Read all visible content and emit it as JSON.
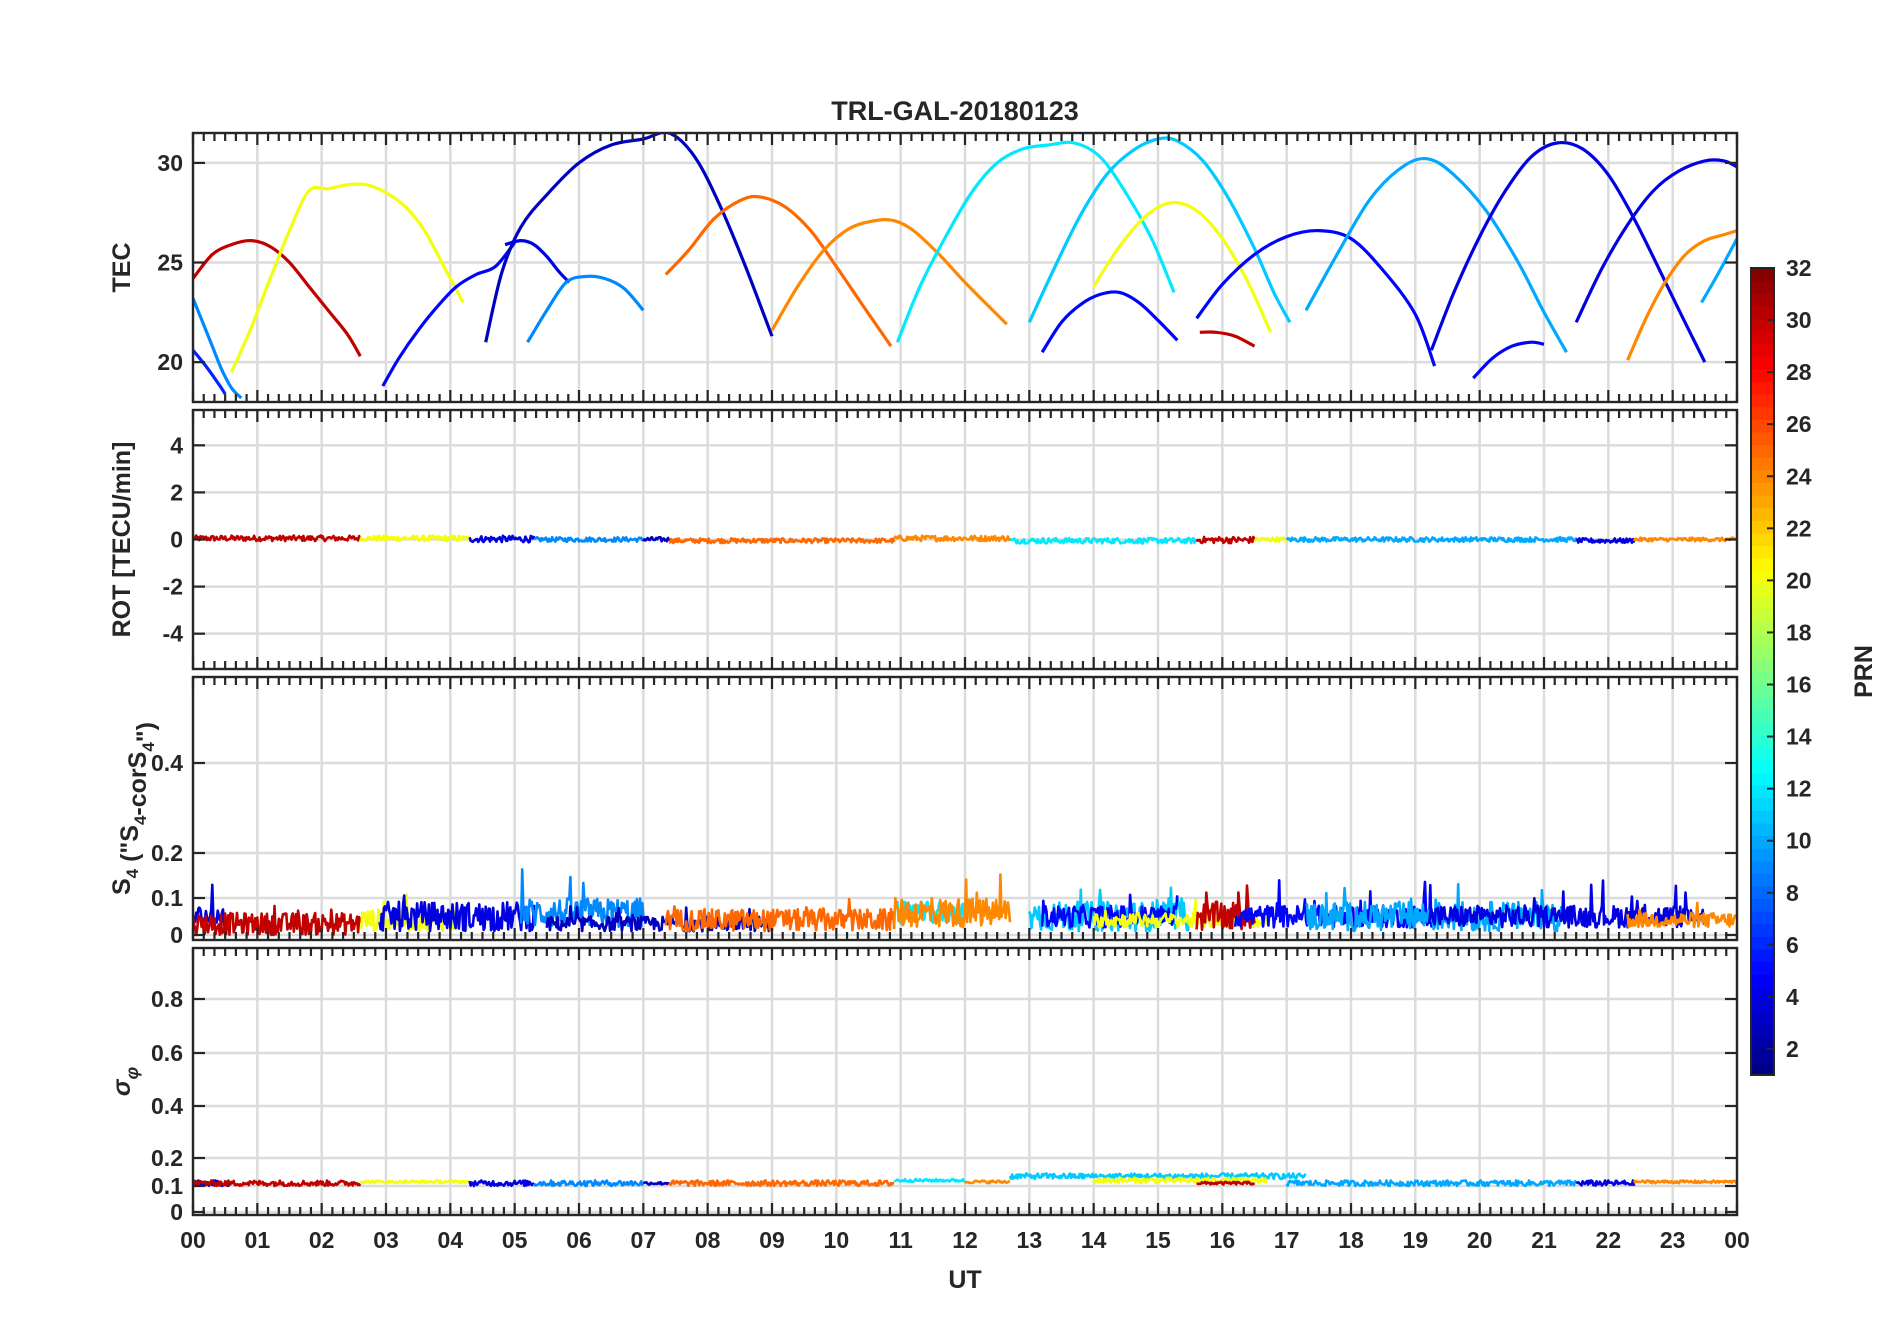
{
  "chart_data": {
    "type": "line",
    "title": "TRL-GAL-20180123",
    "xlabel": "UT",
    "xlim": [
      0,
      24
    ],
    "x_tick_labels": [
      "00",
      "01",
      "02",
      "03",
      "04",
      "05",
      "06",
      "07",
      "08",
      "09",
      "10",
      "11",
      "12",
      "13",
      "14",
      "15",
      "16",
      "17",
      "18",
      "19",
      "20",
      "21",
      "22",
      "23",
      "00"
    ],
    "grid": true,
    "colormap": "jet",
    "colorbar": {
      "label": "PRN",
      "range": [
        1,
        32
      ],
      "ticks": [
        2,
        4,
        6,
        8,
        10,
        12,
        14,
        16,
        18,
        20,
        22,
        24,
        26,
        28,
        30,
        32
      ],
      "placement": "right"
    },
    "panels": [
      {
        "id": "tec",
        "ylabel": "TEC",
        "ylim": [
          18,
          31.5
        ],
        "yticks": [
          20,
          25,
          30
        ],
        "series": [
          {
            "prn": 30,
            "x": [
              0.0,
              0.3,
              0.6,
              0.9,
              1.2,
              1.5,
              1.8,
              2.1,
              2.4,
              2.6
            ],
            "y": [
              24.2,
              25.4,
              25.9,
              26.1,
              25.8,
              25.0,
              23.8,
              22.6,
              21.4,
              20.3
            ]
          },
          {
            "prn": 9,
            "x": [
              0.0,
              0.15,
              0.3,
              0.45,
              0.6,
              0.75
            ],
            "y": [
              23.2,
              22.0,
              20.8,
              19.6,
              18.7,
              18.2
            ]
          },
          {
            "prn": 6,
            "x": [
              0.0,
              0.2,
              0.4,
              0.5
            ],
            "y": [
              20.6,
              19.8,
              18.9,
              18.4
            ]
          },
          {
            "prn": 20,
            "x": [
              0.6,
              0.9,
              1.2,
              1.5,
              1.8,
              2.1,
              2.4,
              2.7,
              3.0,
              3.3,
              3.6,
              3.9,
              4.2
            ],
            "y": [
              19.5,
              21.7,
              24.2,
              26.6,
              28.6,
              28.7,
              28.9,
              28.9,
              28.5,
              27.8,
              26.6,
              24.8,
              23.0
            ]
          },
          {
            "prn": 5,
            "x": [
              2.95,
              3.2,
              3.5,
              3.8,
              4.1,
              4.4,
              4.7,
              5.0
            ],
            "y": [
              18.8,
              20.2,
              21.6,
              22.8,
              23.8,
              24.4,
              24.8,
              26.0
            ]
          },
          {
            "prn": 3,
            "x": [
              4.55,
              4.8,
              5.1,
              5.5,
              6.0,
              6.5,
              7.0,
              7.4,
              7.8,
              8.2,
              8.6,
              9.0
            ],
            "y": [
              21.0,
              24.5,
              26.8,
              28.4,
              30.0,
              30.9,
              31.2,
              31.5,
              30.3,
              27.8,
              24.7,
              21.3
            ]
          },
          {
            "prn": 4,
            "x": [
              4.85,
              5.1,
              5.3,
              5.5,
              5.7,
              5.85
            ],
            "y": [
              25.9,
              26.1,
              25.9,
              25.3,
              24.5,
              24.0
            ]
          },
          {
            "prn": 9,
            "x": [
              5.2,
              5.5,
              5.8,
              6.1,
              6.4,
              6.7,
              7.0
            ],
            "y": [
              21.0,
              22.6,
              24.0,
              24.3,
              24.2,
              23.7,
              22.6
            ]
          },
          {
            "prn": 25,
            "x": [
              7.35,
              7.7,
              8.1,
              8.5,
              8.8,
              9.2,
              9.6,
              10.0,
              10.4,
              10.85
            ],
            "y": [
              24.4,
              25.6,
              27.2,
              28.1,
              28.3,
              27.8,
              26.6,
              24.8,
              22.9,
              20.8
            ]
          },
          {
            "prn": 24,
            "x": [
              9.0,
              9.4,
              9.8,
              10.2,
              10.6,
              10.9,
              11.2,
              11.6,
              12.0,
              12.4,
              12.65
            ],
            "y": [
              21.6,
              23.8,
              25.6,
              26.7,
              27.1,
              27.1,
              26.6,
              25.4,
              24.0,
              22.7,
              21.9
            ]
          },
          {
            "prn": 12,
            "x": [
              10.95,
              11.3,
              11.7,
              12.1,
              12.5,
              12.9,
              13.3,
              13.7,
              14.1,
              14.5,
              14.9,
              15.25
            ],
            "y": [
              21.0,
              23.8,
              26.3,
              28.5,
              30.0,
              30.7,
              30.9,
              31.0,
              30.3,
              28.5,
              26.2,
              23.5
            ]
          },
          {
            "prn": 11,
            "x": [
              13.0,
              13.4,
              13.8,
              14.2,
              14.6,
              15.0,
              15.3,
              15.7,
              16.1,
              16.5,
              16.8,
              17.05
            ],
            "y": [
              22.0,
              24.8,
              27.4,
              29.4,
              30.6,
              31.2,
              31.1,
              30.1,
              28.2,
              25.7,
              23.5,
              22.0
            ]
          },
          {
            "prn": 5,
            "x": [
              13.2,
              13.5,
              13.8,
              14.1,
              14.4,
              14.7,
              15.0,
              15.3
            ],
            "y": [
              20.5,
              22.0,
              22.9,
              23.4,
              23.5,
              23.0,
              22.1,
              21.1
            ]
          },
          {
            "prn": 20,
            "x": [
              14.0,
              14.4,
              14.8,
              15.2,
              15.6,
              16.0,
              16.4,
              16.75
            ],
            "y": [
              23.8,
              25.8,
              27.3,
              28.0,
              27.6,
              26.2,
              24.0,
              21.5
            ]
          },
          {
            "prn": 30,
            "x": [
              15.65,
              15.9,
              16.2,
              16.5
            ],
            "y": [
              21.5,
              21.5,
              21.3,
              20.8
            ]
          },
          {
            "prn": 5,
            "x": [
              15.6,
              16.0,
              16.5,
              17.0,
              17.5,
              18.0,
              18.5,
              19.0,
              19.3
            ],
            "y": [
              22.2,
              23.9,
              25.4,
              26.3,
              26.6,
              26.2,
              24.6,
              22.4,
              19.8
            ]
          },
          {
            "prn": 10,
            "x": [
              17.3,
              17.8,
              18.3,
              18.8,
              19.2,
              19.6,
              20.1,
              20.6,
              21.0,
              21.35
            ],
            "y": [
              22.6,
              25.5,
              28.2,
              29.8,
              30.2,
              29.4,
              27.6,
              25.0,
              22.5,
              20.5
            ]
          },
          {
            "prn": 4,
            "x": [
              19.25,
              19.6,
              20.0,
              20.4,
              20.8,
              21.2,
              21.6,
              22.0,
              22.4,
              22.8,
              23.1,
              23.5
            ],
            "y": [
              20.6,
              23.5,
              26.3,
              28.6,
              30.3,
              31.0,
              30.7,
              29.4,
              27.2,
              24.6,
              22.6,
              20.0
            ]
          },
          {
            "prn": 5,
            "x": [
              19.9,
              20.2,
              20.5,
              20.8,
              21.0
            ],
            "y": [
              19.2,
              20.2,
              20.8,
              21.0,
              20.9
            ]
          },
          {
            "prn": 4,
            "x": [
              21.5,
              21.9,
              22.3,
              22.7,
              23.1,
              23.5,
              23.8,
              24.0
            ],
            "y": [
              22.0,
              24.7,
              26.9,
              28.6,
              29.6,
              30.1,
              30.1,
              29.8
            ]
          },
          {
            "prn": 24,
            "x": [
              22.3,
              22.6,
              22.9,
              23.2,
              23.5,
              23.8,
              24.0
            ],
            "y": [
              20.1,
              22.3,
              24.1,
              25.4,
              26.1,
              26.4,
              26.6
            ]
          },
          {
            "prn": 10,
            "x": [
              23.45,
              23.7,
              24.0
            ],
            "y": [
              23.0,
              24.4,
              26.2
            ]
          }
        ]
      },
      {
        "id": "rot",
        "ylabel": "ROT [TECU/min]",
        "ylim": [
          -5.5,
          5.5
        ],
        "yticks": [
          -4,
          -2,
          0,
          2,
          4
        ],
        "series": [
          {
            "prn": 30,
            "x": [
              0.0,
              2.6
            ],
            "level": 0.05,
            "noise": 0.12
          },
          {
            "prn": 20,
            "x": [
              2.6,
              4.3
            ],
            "level": 0.05,
            "noise": 0.12
          },
          {
            "prn": 4,
            "x": [
              4.3,
              5.3
            ],
            "level": 0.02,
            "noise": 0.14
          },
          {
            "prn": 9,
            "x": [
              5.3,
              7.0
            ],
            "level": 0.0,
            "noise": 0.1
          },
          {
            "prn": 3,
            "x": [
              7.0,
              7.4
            ],
            "level": 0.0,
            "noise": 0.1
          },
          {
            "prn": 25,
            "x": [
              7.4,
              10.9
            ],
            "level": -0.05,
            "noise": 0.1
          },
          {
            "prn": 24,
            "x": [
              10.9,
              12.7
            ],
            "level": 0.05,
            "noise": 0.12
          },
          {
            "prn": 12,
            "x": [
              12.7,
              15.6
            ],
            "level": -0.05,
            "noise": 0.12
          },
          {
            "prn": 30,
            "x": [
              15.6,
              16.5
            ],
            "level": -0.02,
            "noise": 0.14
          },
          {
            "prn": 20,
            "x": [
              16.5,
              17.0
            ],
            "level": 0.0,
            "noise": 0.1
          },
          {
            "prn": 10,
            "x": [
              17.0,
              21.5
            ],
            "level": 0.0,
            "noise": 0.1
          },
          {
            "prn": 4,
            "x": [
              21.5,
              22.4
            ],
            "level": -0.05,
            "noise": 0.1
          },
          {
            "prn": 24,
            "x": [
              22.4,
              24.0
            ],
            "level": 0.0,
            "noise": 0.08
          }
        ]
      },
      {
        "id": "s4",
        "ylabel": "S4 (\"S4-corS4\")",
        "ylim": [
          0,
          0.6
        ],
        "yticks": [
          0,
          0.1,
          0.2,
          0.4
        ],
        "series": [
          {
            "prn": 4,
            "x": [
              0.0,
              0.5
            ],
            "level": 0.05,
            "noise": 0.03
          },
          {
            "prn": 30,
            "x": [
              0.0,
              2.6
            ],
            "level": 0.03,
            "noise": 0.03
          },
          {
            "prn": 20,
            "x": [
              2.6,
              4.3
            ],
            "level": 0.04,
            "noise": 0.03
          },
          {
            "prn": 4,
            "x": [
              2.9,
              5.3
            ],
            "level": 0.05,
            "noise": 0.04
          },
          {
            "prn": 9,
            "x": [
              5.1,
              7.0
            ],
            "level": 0.06,
            "noise": 0.04
          },
          {
            "prn": 3,
            "x": [
              5.5,
              9.0
            ],
            "level": 0.03,
            "noise": 0.02
          },
          {
            "prn": 25,
            "x": [
              7.35,
              10.9
            ],
            "level": 0.04,
            "noise": 0.03
          },
          {
            "prn": 12,
            "x": [
              10.95,
              12.0
            ],
            "level": 0.06,
            "noise": 0.03
          },
          {
            "prn": 24,
            "x": [
              10.9,
              12.7
            ],
            "level": 0.06,
            "noise": 0.04
          },
          {
            "prn": 11,
            "x": [
              13.0,
              15.5
            ],
            "level": 0.05,
            "noise": 0.04
          },
          {
            "prn": 5,
            "x": [
              13.2,
              15.3
            ],
            "level": 0.05,
            "noise": 0.03
          },
          {
            "prn": 20,
            "x": [
              14.0,
              16.7
            ],
            "level": 0.04,
            "noise": 0.02
          },
          {
            "prn": 30,
            "x": [
              15.6,
              16.5
            ],
            "level": 0.05,
            "noise": 0.04
          },
          {
            "prn": 5,
            "x": [
              16.2,
              19.3
            ],
            "level": 0.05,
            "noise": 0.03
          },
          {
            "prn": 10,
            "x": [
              17.3,
              21.3
            ],
            "level": 0.05,
            "noise": 0.04
          },
          {
            "prn": 4,
            "x": [
              19.2,
              23.5
            ],
            "level": 0.05,
            "noise": 0.03
          },
          {
            "prn": 24,
            "x": [
              22.3,
              24.0
            ],
            "level": 0.04,
            "noise": 0.02
          }
        ]
      },
      {
        "id": "sigma_phi",
        "ylabel": "σφ",
        "ylim": [
          0,
          1
        ],
        "yticks": [
          0,
          0.1,
          0.2,
          0.4,
          0.6,
          0.8
        ],
        "series": [
          {
            "prn": 4,
            "x": [
              0.0,
              0.6
            ],
            "level": 0.11,
            "noise": 0.01
          },
          {
            "prn": 30,
            "x": [
              0.0,
              2.6
            ],
            "level": 0.11,
            "noise": 0.01
          },
          {
            "prn": 20,
            "x": [
              2.6,
              4.3
            ],
            "level": 0.115,
            "noise": 0.005
          },
          {
            "prn": 4,
            "x": [
              4.3,
              5.3
            ],
            "level": 0.11,
            "noise": 0.01
          },
          {
            "prn": 9,
            "x": [
              5.3,
              7.0
            ],
            "level": 0.11,
            "noise": 0.01
          },
          {
            "prn": 3,
            "x": [
              7.0,
              7.4
            ],
            "level": 0.11,
            "noise": 0.005
          },
          {
            "prn": 25,
            "x": [
              7.4,
              10.9
            ],
            "level": 0.11,
            "noise": 0.01
          },
          {
            "prn": 12,
            "x": [
              10.9,
              12.0
            ],
            "level": 0.12,
            "noise": 0.005
          },
          {
            "prn": 24,
            "x": [
              12.0,
              12.7
            ],
            "level": 0.115,
            "noise": 0.005
          },
          {
            "prn": 11,
            "x": [
              12.7,
              17.3
            ],
            "level": 0.135,
            "noise": 0.01
          },
          {
            "prn": 20,
            "x": [
              14.0,
              16.7
            ],
            "level": 0.12,
            "noise": 0.01
          },
          {
            "prn": 30,
            "x": [
              15.6,
              16.5
            ],
            "level": 0.11,
            "noise": 0.005
          },
          {
            "prn": 10,
            "x": [
              17.0,
              21.5
            ],
            "level": 0.11,
            "noise": 0.01
          },
          {
            "prn": 4,
            "x": [
              21.5,
              22.4
            ],
            "level": 0.11,
            "noise": 0.01
          },
          {
            "prn": 24,
            "x": [
              22.4,
              24.0
            ],
            "level": 0.115,
            "noise": 0.005
          }
        ]
      }
    ]
  }
}
